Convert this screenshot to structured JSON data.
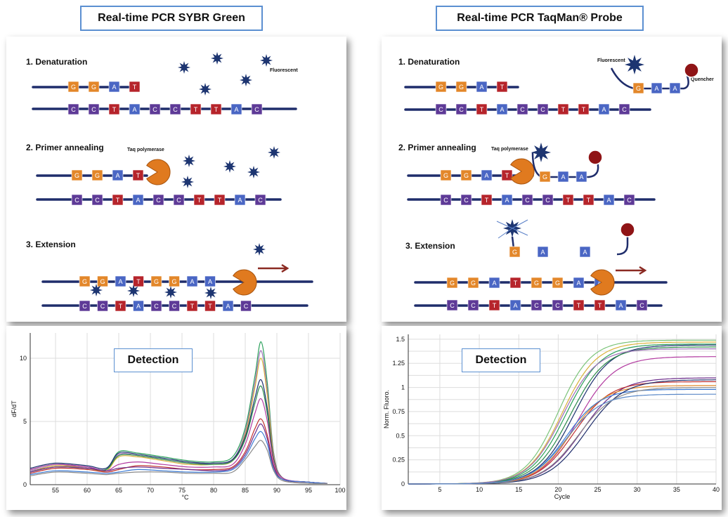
{
  "left": {
    "title": "Real-time PCR SYBR Green",
    "steps": [
      "1. Denaturation",
      "2. Primer annealing",
      "3. Extension"
    ],
    "fluorescent_label": "Fluorescent",
    "taq_label": "Taq polymerase",
    "primer_bases": [
      "G",
      "G",
      "A",
      "T"
    ],
    "template_bases": [
      "C",
      "C",
      "T",
      "A",
      "C",
      "C",
      "T",
      "T",
      "A",
      "C"
    ],
    "extension_bases": [
      "G",
      "G",
      "A",
      "T",
      "G",
      "G",
      "A",
      "A"
    ],
    "detection_label": "Detection"
  },
  "right": {
    "title": "Real-time PCR TaqMan® Probe",
    "steps": [
      "1. Denaturation",
      "2. Primer annealing",
      "3. Extension"
    ],
    "fluorescent_label": "Fluorescent",
    "quencher_label": "Quencher",
    "taq_label": "Taq polymerase",
    "probe_bases": [
      "G",
      "A",
      "A"
    ],
    "cleaved_bases": [
      "G",
      "A",
      "A"
    ],
    "detection_label": "Detection"
  },
  "colors": {
    "strand": "#1f2d6b",
    "orange": "#e3872a",
    "red": "#b6242b",
    "blue": "#4a66c4",
    "purple": "#5e3a97",
    "star": "#1d3571",
    "quencher": "#8f1416",
    "polymerase": "#e07a1f",
    "arrow": "#8b2a22"
  },
  "chart_data": [
    {
      "type": "line",
      "title": "",
      "xlabel": "°C",
      "ylabel": "dF/dT",
      "xlim": [
        51,
        100
      ],
      "ylim": [
        0,
        12
      ],
      "xticks": [
        55,
        60,
        65,
        70,
        75,
        80,
        85,
        90,
        95,
        100
      ],
      "yticks": [
        0,
        5,
        10
      ],
      "series": [
        {
          "color": "#2aa05a",
          "x": [
            51,
            55,
            60,
            63,
            65,
            68,
            72,
            76,
            80,
            83,
            85,
            86.5,
            87.5,
            88.5,
            89.5,
            91,
            95,
            98
          ],
          "y": [
            1.2,
            1.6,
            1.4,
            1.2,
            2.6,
            2.5,
            2.2,
            1.9,
            1.8,
            2.2,
            4.5,
            8.5,
            11.3,
            8.0,
            2.5,
            0.5,
            0.2,
            0.1
          ]
        },
        {
          "color": "#9c6fb8",
          "x": [
            51,
            55,
            60,
            63,
            65,
            68,
            72,
            76,
            80,
            83,
            85,
            86.5,
            87.5,
            88.5,
            89.5,
            91,
            95,
            98
          ],
          "y": [
            1.1,
            1.5,
            1.4,
            1.2,
            2.4,
            2.3,
            2.0,
            1.7,
            1.7,
            2.0,
            4.2,
            8.0,
            10.6,
            7.4,
            2.4,
            0.5,
            0.2,
            0.1
          ]
        },
        {
          "color": "#d8b23a",
          "x": [
            51,
            55,
            60,
            63,
            65,
            68,
            72,
            76,
            80,
            83,
            85,
            86.5,
            87.5,
            88.5,
            89.5,
            91,
            95,
            98
          ],
          "y": [
            1.0,
            1.5,
            1.3,
            1.1,
            2.2,
            2.2,
            1.9,
            1.6,
            1.6,
            1.9,
            4.0,
            7.6,
            10.0,
            7.0,
            2.2,
            0.5,
            0.2,
            0.1
          ]
        },
        {
          "color": "#1b2f6e",
          "x": [
            51,
            55,
            60,
            63,
            65,
            68,
            72,
            76,
            80,
            83,
            85,
            86.5,
            87.5,
            88.5,
            89.5,
            91,
            95,
            98
          ],
          "y": [
            1.3,
            1.7,
            1.5,
            1.3,
            2.5,
            2.4,
            2.1,
            1.8,
            1.7,
            2.0,
            3.8,
            6.8,
            8.3,
            6.0,
            2.0,
            0.5,
            0.2,
            0.1
          ]
        },
        {
          "color": "#2a8a4a",
          "x": [
            51,
            55,
            60,
            63,
            65,
            68,
            72,
            76,
            80,
            83,
            85,
            86.5,
            87.5,
            88.5,
            89.5,
            91,
            95,
            98
          ],
          "y": [
            1.0,
            1.4,
            1.3,
            1.2,
            2.3,
            2.3,
            2.0,
            1.7,
            1.6,
            1.9,
            3.6,
            6.4,
            7.8,
            5.6,
            1.9,
            0.5,
            0.2,
            0.1
          ]
        },
        {
          "color": "#b23aa0",
          "x": [
            51,
            55,
            60,
            63,
            65,
            68,
            72,
            76,
            80,
            83,
            85,
            86.5,
            87.5,
            88.5,
            89.5,
            91,
            95,
            98
          ],
          "y": [
            1.2,
            1.6,
            1.4,
            1.1,
            1.6,
            1.8,
            1.6,
            1.4,
            1.4,
            1.6,
            3.2,
            5.6,
            6.8,
            5.0,
            1.8,
            0.5,
            0.2,
            0.1
          ]
        },
        {
          "color": "#c0302f",
          "x": [
            51,
            55,
            60,
            63,
            65,
            68,
            72,
            76,
            80,
            83,
            85,
            86.5,
            87.5,
            88.5,
            89.5,
            91,
            95,
            98
          ],
          "y": [
            0.9,
            1.3,
            1.2,
            1.0,
            1.2,
            1.5,
            1.4,
            1.2,
            1.2,
            1.4,
            2.6,
            4.4,
            5.2,
            3.9,
            1.5,
            0.4,
            0.2,
            0.1
          ]
        },
        {
          "color": "#6a2a8a",
          "x": [
            51,
            55,
            60,
            63,
            65,
            68,
            72,
            76,
            80,
            83,
            85,
            86.5,
            87.5,
            88.5,
            89.5,
            91,
            95,
            98
          ],
          "y": [
            1.0,
            1.4,
            1.3,
            1.1,
            1.3,
            1.4,
            1.3,
            1.2,
            1.1,
            1.3,
            2.4,
            4.0,
            4.8,
            3.6,
            1.4,
            0.4,
            0.2,
            0.1
          ]
        },
        {
          "color": "#3c7bd4",
          "x": [
            51,
            55,
            60,
            63,
            65,
            68,
            72,
            76,
            80,
            83,
            85,
            86.5,
            87.5,
            88.5,
            89.5,
            91,
            95,
            98
          ],
          "y": [
            0.8,
            1.1,
            1.0,
            0.9,
            1.0,
            1.2,
            1.1,
            1.0,
            1.0,
            1.2,
            2.2,
            3.6,
            4.2,
            3.2,
            1.2,
            0.4,
            0.2,
            0.1
          ]
        },
        {
          "color": "#8a8a8a",
          "x": [
            51,
            55,
            60,
            63,
            65,
            68,
            72,
            76,
            80,
            83,
            85,
            86.5,
            87.5,
            88.5,
            89.5,
            91,
            95,
            98
          ],
          "y": [
            0.7,
            1.0,
            0.9,
            0.8,
            0.9,
            1.0,
            1.0,
            0.9,
            0.9,
            1.0,
            2.0,
            3.0,
            3.5,
            2.7,
            1.1,
            0.3,
            0.1,
            0.1
          ]
        }
      ]
    },
    {
      "type": "line",
      "title": "",
      "xlabel": "Cycle",
      "ylabel": "Norm. Fluoro.",
      "xlim": [
        1,
        40
      ],
      "ylim": [
        0,
        1.55
      ],
      "xticks": [
        5,
        10,
        15,
        20,
        25,
        30,
        35,
        40
      ],
      "yticks": [
        0,
        0.25,
        0.5,
        0.75,
        1,
        1.25,
        1.5
      ],
      "yticklabels": [
        "0",
        "0.25",
        "0.5",
        "0.75",
        "1",
        "1.25",
        "1.5"
      ],
      "series": [
        {
          "color": "#7cc47a",
          "midpoint": 20.0,
          "plateau": 1.49,
          "slope": 0.48
        },
        {
          "color": "#d8b23a",
          "midpoint": 20.5,
          "plateau": 1.47,
          "slope": 0.46
        },
        {
          "color": "#2aa05a",
          "midpoint": 21.0,
          "plateau": 1.45,
          "slope": 0.45
        },
        {
          "color": "#1b2f6e",
          "midpoint": 22.0,
          "plateau": 1.44,
          "slope": 0.44
        },
        {
          "color": "#2a8a4a",
          "midpoint": 21.5,
          "plateau": 1.42,
          "slope": 0.44
        },
        {
          "color": "#b23aa0",
          "midpoint": 22.5,
          "plateau": 1.32,
          "slope": 0.43
        },
        {
          "color": "#9c6fb8",
          "midpoint": 20.5,
          "plateau": 1.4,
          "slope": 0.46
        },
        {
          "color": "#6a2a8a",
          "midpoint": 23.0,
          "plateau": 1.1,
          "slope": 0.42
        },
        {
          "color": "#c0302f",
          "midpoint": 22.0,
          "plateau": 1.06,
          "slope": 0.44
        },
        {
          "color": "#e38a2a",
          "midpoint": 21.5,
          "plateau": 1.02,
          "slope": 0.45
        },
        {
          "color": "#3c7bd4",
          "midpoint": 21.0,
          "plateau": 0.98,
          "slope": 0.46
        },
        {
          "color": "#1f2d6b",
          "midpoint": 23.5,
          "plateau": 1.08,
          "slope": 0.42
        },
        {
          "color": "#8a8a8a",
          "midpoint": 22.5,
          "plateau": 1.0,
          "slope": 0.43
        },
        {
          "color": "#5a88c8",
          "midpoint": 21.0,
          "plateau": 0.93,
          "slope": 0.45
        }
      ]
    }
  ]
}
